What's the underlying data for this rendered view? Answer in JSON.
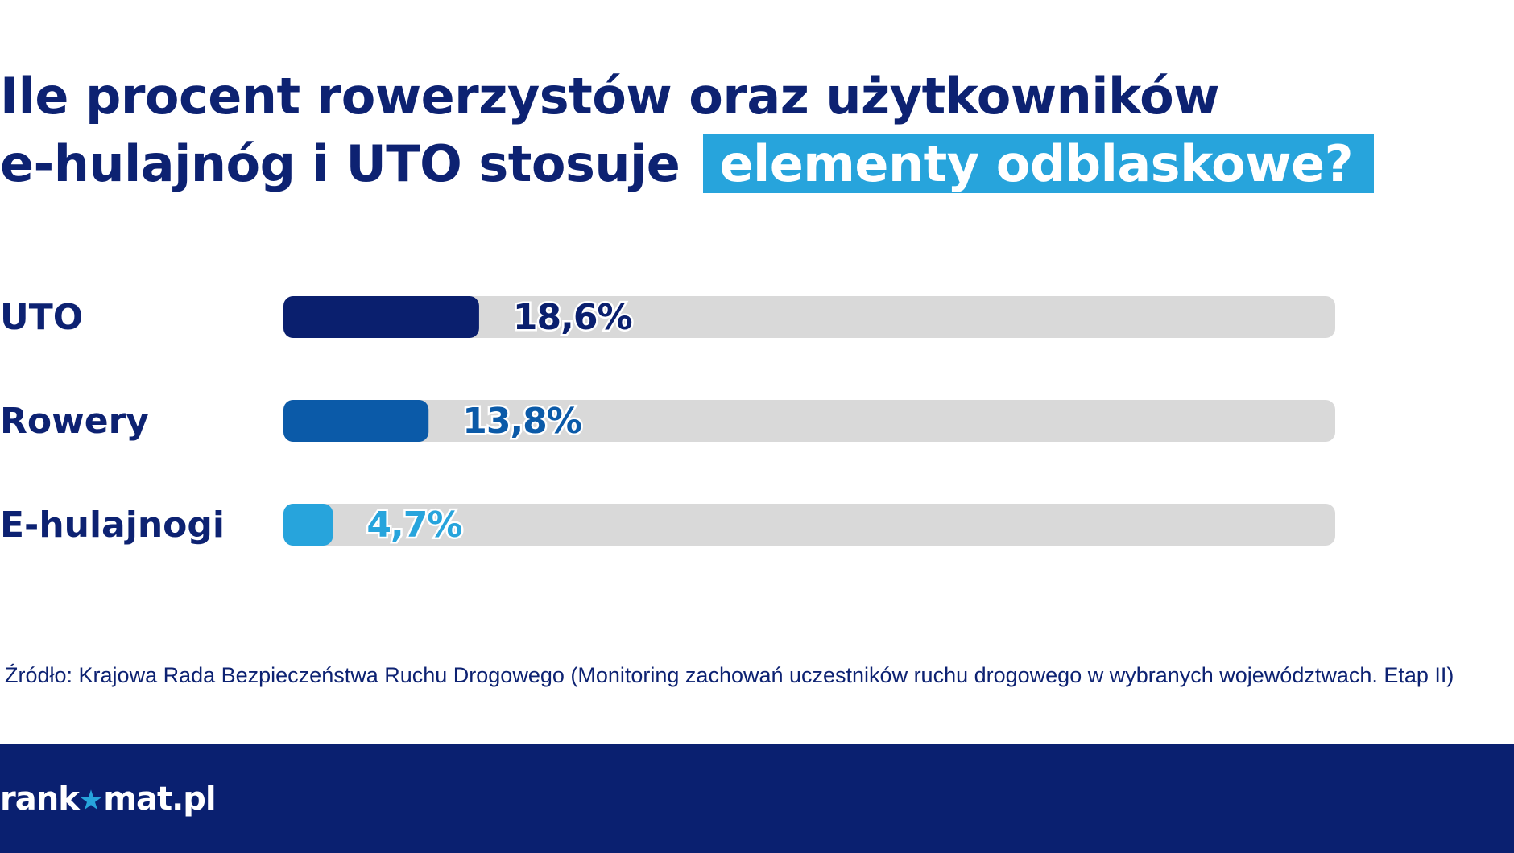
{
  "title": {
    "line1": "Ile procent rowerzystów oraz użytkowników",
    "line2": "e-hulajnóg i UTO stosuje",
    "highlight": "elementy odblaskowe?"
  },
  "chart_data": {
    "type": "bar",
    "orientation": "horizontal",
    "title": "Ile procent rowerzystów oraz użytkowników e-hulajnóg i UTO stosuje elementy odblaskowe?",
    "categories": [
      "UTO",
      "Rowery",
      "E-hulajnogi"
    ],
    "values": [
      18.6,
      13.8,
      4.7
    ],
    "value_labels": [
      "18,6%",
      "13,8%",
      "4,7%"
    ],
    "unit": "%",
    "xlim": [
      0,
      100
    ],
    "bar_colors": [
      "#0a1f6e",
      "#0b5aa8",
      "#27a4dc"
    ],
    "track_color": "#d9d9d9",
    "grid": false,
    "legend": "none"
  },
  "source": "Źródło: Krajowa Rada Bezpieczeństwa Ruchu Drogowego (Monitoring zachowań uczestników ruchu drogowego w wybranych województwach. Etap II)",
  "footer": {
    "logo_left": "rank",
    "logo_right": "mat.pl",
    "logo_icon": "star-icon",
    "background": "#0a2070"
  },
  "colors": {
    "title": "#0d2272",
    "accent": "#27a4dc"
  }
}
